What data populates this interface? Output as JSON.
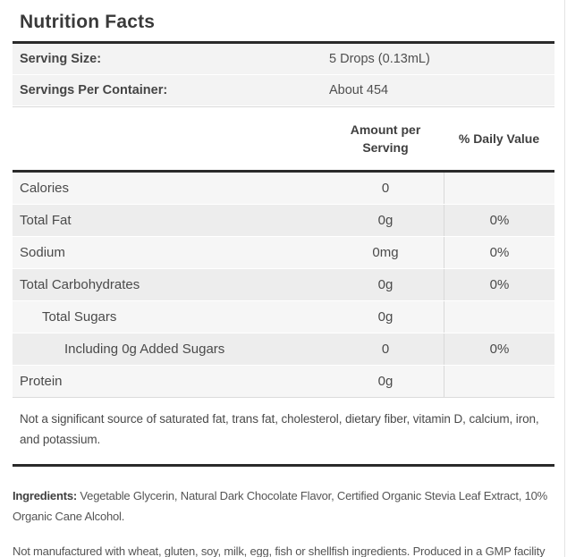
{
  "title": "Nutrition Facts",
  "serving_info": {
    "rows": [
      {
        "label": "Serving Size:",
        "value": "5 Drops (0.13mL)"
      },
      {
        "label": "Servings Per Container:",
        "value": "About 454"
      }
    ]
  },
  "nutrition_table": {
    "columns": {
      "amount_header": "Amount per Serving",
      "daily_value_header": "% Daily Value"
    },
    "rows": [
      {
        "label": "Calories",
        "amount": "0",
        "daily_value": "",
        "indent": 0
      },
      {
        "label": "Total Fat",
        "amount": "0g",
        "daily_value": "0%",
        "indent": 0
      },
      {
        "label": "Sodium",
        "amount": "0mg",
        "daily_value": "0%",
        "indent": 0
      },
      {
        "label": "Total Carbohydrates",
        "amount": "0g",
        "daily_value": "0%",
        "indent": 0
      },
      {
        "label": "Total Sugars",
        "amount": "0g",
        "daily_value": "",
        "indent": 1
      },
      {
        "label": "Including 0g Added Sugars",
        "amount": "0",
        "daily_value": "0%",
        "indent": 2
      },
      {
        "label": "Protein",
        "amount": "0g",
        "daily_value": "",
        "indent": 0
      }
    ],
    "footnote": "Not a significant source of saturated fat, trans fat, cholesterol, dietary fiber, vitamin D, calcium, iron, and potassium."
  },
  "ingredients": {
    "label": "Ingredients:",
    "text": " Vegetable Glycerin, Natural Dark Chocolate Flavor, Certified Organic Stevia Leaf Extract, 10% Organic Cane Alcohol."
  },
  "allergen_statement": "Not manufactured with wheat, gluten, soy, milk, egg, fish or shellfish ingredients. Produced in a GMP facility that processes other ingredients containing these allergens.",
  "colors": {
    "rule": "#2a2a2a",
    "row_light": "#f6f6f6",
    "row_dark": "#ededed",
    "serving_row_bg": "#f3f3f3",
    "column_divider": "#d9d9d9",
    "text": "#4a4a4a"
  }
}
